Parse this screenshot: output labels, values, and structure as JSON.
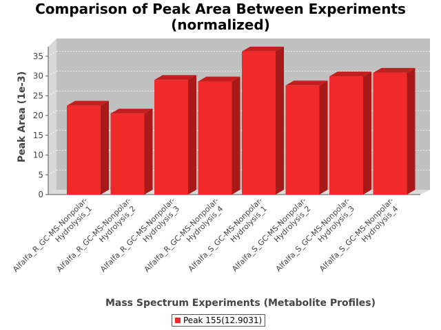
{
  "chart_data": {
    "type": "bar",
    "title_line1": "Comparison of Peak Area Between Experiments",
    "title_line2": "(normalized)",
    "xlabel": "Mass Spectrum Experiments (Metabolite Profiles)",
    "ylabel": "Peak Area (1e-3)",
    "ylim": [
      0,
      37
    ],
    "yticks": [
      0,
      5,
      10,
      15,
      20,
      25,
      30,
      35
    ],
    "grid": true,
    "legend_position": "bottom",
    "categories": [
      [
        "Alfalfa_R_GC-MS-Nonpolar-",
        "Hydrolysis_1"
      ],
      [
        "Alfalfa_R_GC-MS-Nonpolar-",
        "Hydrolysis_2"
      ],
      [
        "Alfalfa_R_GC-MS-Nonpolar-",
        "Hydrolysis_3"
      ],
      [
        "Alfalfa_R_GC-MS-Nonpolar-",
        "Hydrolysis_4"
      ],
      [
        "Alfalfa_S_GC-MS-Nonpolar-",
        "Hydrolysis_1"
      ],
      [
        "Alfalfa_S_GC-MS-Nonpolar-",
        "Hydrolysis_2"
      ],
      [
        "Alfalfa_S_GC-MS-Nonpolar-",
        "Hydrolysis_3"
      ],
      [
        "Alfalfa_S_GC-MS-Nonpolar-",
        "Hydrolysis_4"
      ]
    ],
    "series": [
      {
        "name": "Peak 155(12.9031)",
        "values": [
          22.5,
          20.5,
          29.0,
          28.6,
          36.2,
          27.6,
          29.9,
          30.8
        ]
      }
    ],
    "colors": {
      "bar_front": "#f02a2a",
      "bar_top": "#c41f1f",
      "bar_side": "#a81a1a",
      "plot_back": "#c0c0c0",
      "plot_floor": "#dcdcdc",
      "plot_left_wall": "#d8d8d8",
      "axis": "#555555",
      "gridline": "#ffffff",
      "tick_text": "#444444"
    }
  }
}
